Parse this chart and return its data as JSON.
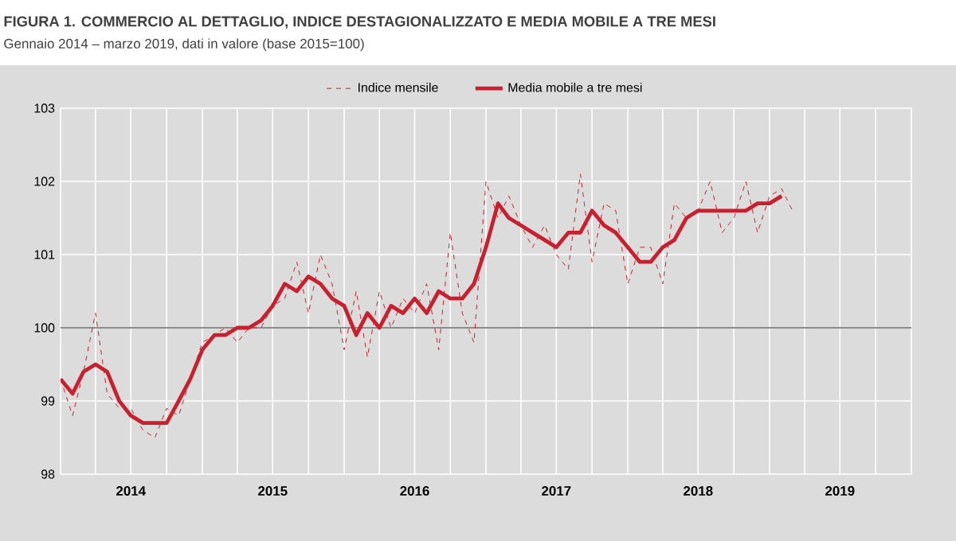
{
  "chart_data": {
    "type": "line",
    "title": "FIGURA 1. COMMERCIO AL DETTAGLIO, INDICE DESTAGIONALIZZATO E MEDIA MOBILE A TRE MESI",
    "subtitle": "Gennaio 2014 – marzo 2019, dati in valore (base 2015=100)",
    "x": [
      "2014-01",
      "2014-02",
      "2014-03",
      "2014-04",
      "2014-05",
      "2014-06",
      "2014-07",
      "2014-08",
      "2014-09",
      "2014-10",
      "2014-11",
      "2014-12",
      "2015-01",
      "2015-02",
      "2015-03",
      "2015-04",
      "2015-05",
      "2015-06",
      "2015-07",
      "2015-08",
      "2015-09",
      "2015-10",
      "2015-11",
      "2015-12",
      "2016-01",
      "2016-02",
      "2016-03",
      "2016-04",
      "2016-05",
      "2016-06",
      "2016-07",
      "2016-08",
      "2016-09",
      "2016-10",
      "2016-11",
      "2016-12",
      "2017-01",
      "2017-02",
      "2017-03",
      "2017-04",
      "2017-05",
      "2017-06",
      "2017-07",
      "2017-08",
      "2017-09",
      "2017-10",
      "2017-11",
      "2017-12",
      "2018-01",
      "2018-02",
      "2018-03",
      "2018-04",
      "2018-05",
      "2018-06",
      "2018-07",
      "2018-08",
      "2018-09",
      "2018-10",
      "2018-11",
      "2018-12",
      "2019-01",
      "2019-02",
      "2019-03"
    ],
    "series": [
      {
        "name": "Indice mensile",
        "color": "#c8202f",
        "line_style": "dashed",
        "values": [
          99.3,
          98.8,
          99.4,
          100.2,
          99.1,
          98.9,
          98.9,
          98.6,
          98.5,
          98.9,
          98.8,
          99.3,
          99.8,
          99.9,
          100.0,
          99.8,
          100.0,
          100.0,
          100.3,
          100.4,
          100.9,
          100.2,
          101.0,
          100.6,
          99.7,
          100.5,
          99.6,
          100.5,
          100.0,
          100.4,
          100.2,
          100.6,
          99.7,
          101.3,
          100.2,
          99.8,
          102.0,
          101.5,
          101.8,
          101.4,
          101.1,
          101.4,
          101.0,
          100.8,
          102.1,
          100.9,
          101.7,
          101.6,
          100.6,
          101.1,
          101.1,
          100.6,
          101.7,
          101.5,
          101.6,
          102.0,
          101.3,
          101.5,
          102.0,
          101.3,
          101.8,
          101.9,
          101.6
        ]
      },
      {
        "name": "Media mobile a tre mesi",
        "color": "#c8202f",
        "line_style": "solid",
        "values": [
          99.3,
          99.1,
          99.4,
          99.5,
          99.4,
          99.0,
          98.8,
          98.7,
          98.7,
          98.7,
          99.0,
          99.3,
          99.7,
          99.9,
          99.9,
          100.0,
          100.0,
          100.1,
          100.3,
          100.6,
          100.5,
          100.7,
          100.6,
          100.4,
          100.3,
          99.9,
          100.2,
          100.0,
          100.3,
          100.2,
          100.4,
          100.2,
          100.5,
          100.4,
          100.4,
          100.6,
          101.1,
          101.7,
          101.5,
          101.4,
          101.3,
          101.2,
          101.1,
          101.3,
          101.3,
          101.6,
          101.4,
          101.3,
          101.1,
          100.9,
          100.9,
          101.1,
          101.2,
          101.5,
          101.6,
          101.6,
          101.6,
          101.6,
          101.6,
          101.7,
          101.7,
          101.8,
          null
        ]
      }
    ],
    "xlim": [
      "2014-01-01",
      "2020-01-01"
    ],
    "xticks": [
      {
        "value": "2014-01-01",
        "label": null
      },
      {
        "value": "2014-04-01",
        "label": null
      },
      {
        "value": "2014-07-01",
        "label": "2014"
      },
      {
        "value": "2014-10-01",
        "label": null
      },
      {
        "value": "2015-01-01",
        "label": null
      },
      {
        "value": "2015-04-01",
        "label": null
      },
      {
        "value": "2015-07-01",
        "label": "2015"
      },
      {
        "value": "2015-10-01",
        "label": null
      },
      {
        "value": "2016-01-01",
        "label": null
      },
      {
        "value": "2016-04-01",
        "label": null
      },
      {
        "value": "2016-07-01",
        "label": "2016"
      },
      {
        "value": "2016-10-01",
        "label": null
      },
      {
        "value": "2017-01-01",
        "label": null
      },
      {
        "value": "2017-04-01",
        "label": null
      },
      {
        "value": "2017-07-01",
        "label": "2017"
      },
      {
        "value": "2017-10-01",
        "label": null
      },
      {
        "value": "2018-01-01",
        "label": null
      },
      {
        "value": "2018-04-01",
        "label": null
      },
      {
        "value": "2018-07-01",
        "label": "2018"
      },
      {
        "value": "2018-10-01",
        "label": null
      },
      {
        "value": "2019-01-01",
        "label": null
      },
      {
        "value": "2019-04-01",
        "label": null
      },
      {
        "value": "2019-07-01",
        "label": "2019"
      },
      {
        "value": "2019-10-01",
        "label": null
      },
      {
        "value": "2020-01-01",
        "label": null
      }
    ],
    "ylim": [
      98,
      103
    ],
    "yticks": [
      98,
      99,
      100,
      101,
      102,
      103
    ],
    "ref_lines": [
      {
        "axis": "y",
        "value": 100,
        "color": "#8c8c8c"
      }
    ],
    "grid": true,
    "legend": "top",
    "marker": "none"
  }
}
